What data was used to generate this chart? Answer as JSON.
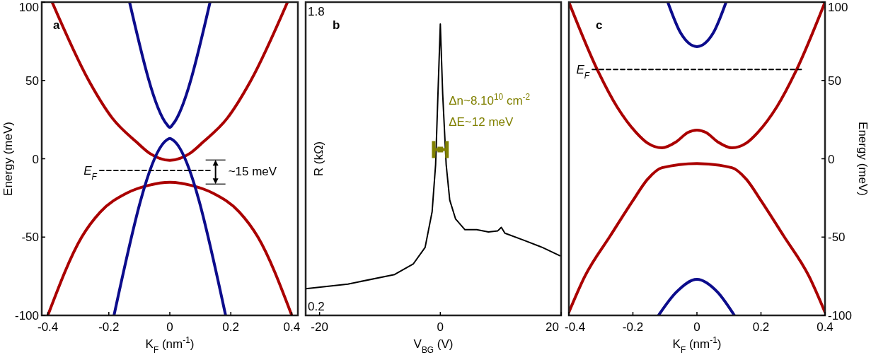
{
  "chart_data": [
    {
      "type": "line",
      "title": "a",
      "xlabel": "K$_{F}$ (nm$^{-1}$)",
      "ylabel": "Energy (meV)",
      "xlim": [
        -0.42,
        0.42
      ],
      "xticks": [
        -0.4,
        -0.2,
        0,
        0.2,
        0.4
      ],
      "ylim": [
        -100,
        100
      ],
      "yticks": [
        -100,
        -50,
        0,
        50,
        100
      ],
      "series": [
        {
          "color": "#aa0000",
          "x": [
            -0.386,
            -0.266,
            -0.188,
            -0.11,
            -0.065,
            0,
            0.065,
            0.11,
            0.188,
            0.266,
            0.386
          ],
          "values": [
            100,
            50,
            25.8,
            10.8,
            3.3,
            -1,
            3.3,
            10.8,
            25.8,
            50,
            100
          ]
        },
        {
          "color": "#aa0000",
          "x": [
            -0.4,
            -0.289,
            -0.228,
            -0.142,
            -0.07,
            0,
            0.07,
            0.142,
            0.228,
            0.289,
            0.4
          ],
          "values": [
            -100,
            -50,
            -34,
            -22,
            -17,
            -15,
            -17,
            -22,
            -34,
            -50,
            -100
          ]
        },
        {
          "color": "#0c0c8c",
          "x": [
            -0.132,
            -0.01,
            0,
            0.01,
            0.132
          ],
          "values": [
            100,
            22,
            20,
            22,
            100
          ]
        },
        {
          "color": "#0c0c8c",
          "x": [
            -0.183,
            -0.01,
            0,
            0.01,
            0.183
          ],
          "values": [
            -100,
            12,
            13,
            12,
            -100
          ]
        },
        {
          "name": "E$_{F}$",
          "color": "#000000",
          "line_style": "dashed",
          "x": [
            -0.23,
            0.14
          ],
          "values": [
            -7.5,
            -7.5
          ]
        }
      ],
      "annotations": [
        {
          "text": "~15 meV",
          "x": 0.15,
          "y": -8
        }
      ]
    },
    {
      "type": "line",
      "title": "b",
      "xlabel": "V$_{BG}$ (V)",
      "ylabel": "R (kΩ)",
      "xlim": [
        -22.3,
        20
      ],
      "xticks": [
        -20,
        0,
        20
      ],
      "ylim": [
        0.15,
        1.85
      ],
      "yticks": [
        0.2,
        1.8
      ],
      "series": [
        {
          "color": "#000000",
          "x": [
            -22.26,
            -15.3,
            -7.57,
            -4.46,
            -2.52,
            -1.36,
            -0.78,
            -0.39,
            0,
            0.39,
            0.97,
            1.56,
            2.53,
            4.08,
            6.03,
            7.97,
            9.52,
            10.1,
            10.7,
            13.8,
            16.9,
            19.8
          ],
          "values": [
            0.295,
            0.32,
            0.372,
            0.43,
            0.519,
            0.712,
            0.968,
            1.353,
            1.731,
            1.353,
            0.968,
            0.776,
            0.673,
            0.615,
            0.615,
            0.603,
            0.609,
            0.628,
            0.596,
            0.558,
            0.519,
            0.474
          ]
        },
        {
          "type": "scatter",
          "marker": "square",
          "color": "#808000",
          "x": [
            0
          ],
          "values": [
            1.05
          ],
          "xerrors": [
            1.1
          ]
        }
      ],
      "annotations": [
        "Δn~8.10$^{10}$ cm$^{-2}$",
        "ΔE~12 meV"
      ]
    },
    {
      "type": "line",
      "title": "c",
      "xlabel": "K$_{F}$ (nm$^{-1}$)",
      "y2label": "Energy (meV)",
      "xlim": [
        -0.4,
        0.4
      ],
      "xticks": [
        -0.4,
        -0.2,
        0,
        0.2,
        0.4
      ],
      "y2lim": [
        -100,
        100
      ],
      "y2ticks": [
        -100,
        -50,
        0,
        50,
        100
      ],
      "series": [
        {
          "axis": "y2",
          "color": "#aa0000",
          "x": [
            -0.4,
            -0.309,
            -0.25,
            -0.19,
            -0.154,
            -0.109,
            -0.065,
            -0.028,
            0,
            0.028,
            0.065,
            0.109,
            0.154,
            0.19,
            0.25,
            0.309,
            0.4
          ],
          "values": [
            100,
            55.9,
            33.3,
            16.8,
            10,
            7,
            10.8,
            16.8,
            18.3,
            16.8,
            10.8,
            7,
            10,
            16.8,
            33.3,
            55.9,
            100
          ]
        },
        {
          "axis": "y2",
          "color": "#aa0000",
          "x": [
            -0.4,
            -0.35,
            -0.27,
            -0.2,
            -0.154,
            -0.109,
            0,
            0.109,
            0.154,
            0.2,
            0.27,
            0.35,
            0.4
          ],
          "values": [
            -98,
            -75,
            -49,
            -26.7,
            -13,
            -5.7,
            -3,
            -5.7,
            -13,
            -26.7,
            -49,
            -75,
            -98
          ]
        },
        {
          "axis": "y2",
          "color": "#0c0c8c",
          "x": [
            -0.091,
            -0.05,
            0,
            0.05,
            0.091
          ],
          "values": [
            100,
            80,
            71.6,
            80,
            100
          ]
        },
        {
          "axis": "y2",
          "color": "#0c0c8c",
          "x": [
            -0.12,
            -0.065,
            0,
            0.065,
            0.117
          ],
          "values": [
            -100,
            -85.3,
            -77,
            -85.3,
            -100
          ]
        },
        {
          "axis": "y2",
          "name": "E$_{F}$",
          "color": "#000000",
          "line_style": "dashed",
          "x": [
            -0.327,
            0.326
          ],
          "values": [
            57,
            57
          ]
        }
      ]
    }
  ]
}
